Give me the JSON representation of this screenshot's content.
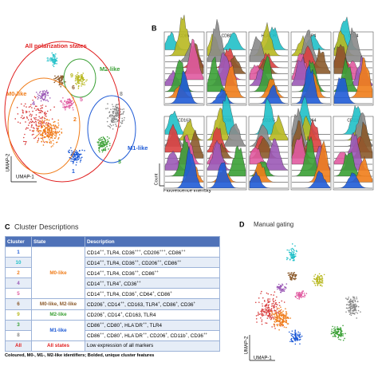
{
  "panel_a": {
    "label_all": "All polarization states",
    "label_m2": "M2-like",
    "label_m0": "M0-like",
    "label_m1": "M1-like",
    "axis_y": "UMAP-2",
    "axis_x": "UMAP-1",
    "clusters": [
      {
        "id": "1",
        "color": "#1f5bd6"
      },
      {
        "id": "2",
        "color": "#f07d1a"
      },
      {
        "id": "3",
        "color": "#3aa035"
      },
      {
        "id": "4",
        "color": "#9b59b6"
      },
      {
        "id": "5",
        "color": "#e05aa0"
      },
      {
        "id": "6",
        "color": "#8b5a2b"
      },
      {
        "id": "7",
        "color": "#d94040"
      },
      {
        "id": "8",
        "color": "#8a8a8a"
      },
      {
        "id": "9",
        "color": "#b8b820"
      },
      {
        "id": "10",
        "color": "#20c0c8"
      }
    ]
  },
  "panel_b": {
    "letter": "B",
    "markers": [
      "CD86",
      "CD80",
      "HLA-DR",
      "TLR4",
      "CD14",
      "CD163",
      "CD38",
      "CD206",
      "CD64",
      "CD11b"
    ],
    "axis_y": "Count",
    "axis_x": "Fluorescence intensity"
  },
  "panel_c": {
    "letter": "C",
    "title": "Cluster Descriptions",
    "header": [
      "Cluster",
      "State",
      "Description"
    ],
    "groups": [
      {
        "state": "M0-like",
        "color": "#f07d1a",
        "rows": [
          {
            "cluster": "1",
            "color": "#1f5bd6",
            "description": "CD14++, TLR4, CD36+++, CD206+++, CD86++"
          },
          {
            "cluster": "10",
            "color": "#20c0c8",
            "description": "CD14++, TLR4, CD36++, CD206++, CD86++"
          },
          {
            "cluster": "2",
            "color": "#f07d1a",
            "description": "CD14++, TLR4, CD36++, CD86++"
          },
          {
            "cluster": "4",
            "color": "#9b59b6",
            "description": "CD14++, TLR4+, CD36++"
          },
          {
            "cluster": "5",
            "color": "#e05aa0",
            "description": "CD14++, TLR4, CD36+, CD64+, CD86+"
          }
        ]
      },
      {
        "state": "M0-like, M2-like",
        "color": "#8b5a2b",
        "rows": [
          {
            "cluster": "6",
            "color": "#8b5a2b",
            "description": "CD206+, CD14++, CD163, TLR4+, CD86+, CD36+"
          }
        ]
      },
      {
        "state": "M2-like",
        "color": "#3aa035",
        "rows": [
          {
            "cluster": "9",
            "color": "#b8b820",
            "description": "CD206+, CD14+, CD163, TLR4"
          }
        ]
      },
      {
        "state": "M1-like",
        "color": "#1f5bd6",
        "rows": [
          {
            "cluster": "3",
            "color": "#3aa035",
            "description": "CD86++, CD80+, HLA-DR++, TLR4"
          },
          {
            "cluster": "8",
            "color": "#8a8a8a",
            "description": "CD86++, CD80+, HLA-DR++, CD206+, CD11b+, CD36++"
          }
        ]
      },
      {
        "state": "All states",
        "color": "#e02020",
        "rows": [
          {
            "cluster": "All",
            "color": "#e02020",
            "description": "Low expression of all markers"
          }
        ]
      }
    ],
    "footnote": "Coloured, M0-, M1-, M2-like identifiers; Bolded, unique cluster features"
  },
  "panel_d": {
    "letter": "D",
    "title": "Manual gating",
    "axis_y": "UMAP-2",
    "axis_x": "UMAP-1"
  }
}
